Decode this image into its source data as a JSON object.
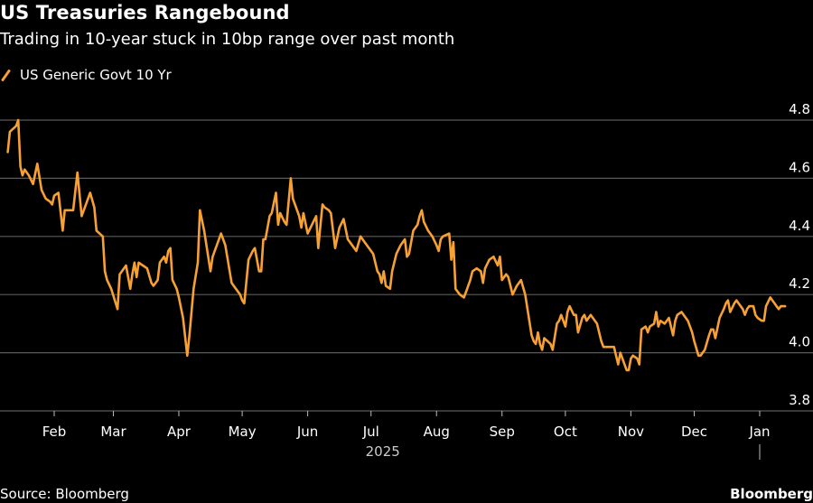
{
  "chart_data": {
    "type": "line",
    "title": "US Treasuries Rangebound",
    "subtitle": "Trading in 10-year stuck in 10bp range over past month",
    "xlabel": "",
    "ylabel": "",
    "ylim": [
      3.8,
      4.8
    ],
    "yticks": [
      3.8,
      4.0,
      4.2,
      4.4,
      4.6,
      4.8
    ],
    "ytick_labels": [
      "3.8",
      "4.0",
      "4.2",
      "4.4",
      "4.6",
      "4.8"
    ],
    "xlim": [
      "2025-01-01",
      "2026-01-15"
    ],
    "xticks": [
      {
        "date": "2025-02-01",
        "label": "Feb"
      },
      {
        "date": "2025-03-01",
        "label": "Mar"
      },
      {
        "date": "2025-04-01",
        "label": "Apr"
      },
      {
        "date": "2025-05-01",
        "label": "May"
      },
      {
        "date": "2025-06-01",
        "label": "Jun"
      },
      {
        "date": "2025-07-01",
        "label": "Jul"
      },
      {
        "date": "2025-08-01",
        "label": "Aug"
      },
      {
        "date": "2025-09-01",
        "label": "Sep"
      },
      {
        "date": "2025-10-01",
        "label": "Oct"
      },
      {
        "date": "2025-11-01",
        "label": "Nov"
      },
      {
        "date": "2025-12-01",
        "label": "Dec"
      },
      {
        "date": "2026-01-01",
        "label": "Jan"
      }
    ],
    "year_label": {
      "text": "2025",
      "under": "2025-07-01"
    },
    "year_separator": "2026-01-01",
    "grid": true,
    "y_axis_side": "right",
    "legend": {
      "position": "top-left",
      "entries": [
        "US Generic Govt 10 Yr"
      ]
    },
    "series": [
      {
        "name": "US Generic Govt 10 Yr",
        "color": "#f7a033",
        "points": [
          [
            "2025-01-10",
            4.69
          ],
          [
            "2025-01-11",
            4.76
          ],
          [
            "2025-01-14",
            4.78
          ],
          [
            "2025-01-15",
            4.8
          ],
          [
            "2025-01-16",
            4.64
          ],
          [
            "2025-01-17",
            4.61
          ],
          [
            "2025-01-18",
            4.63
          ],
          [
            "2025-01-20",
            4.61
          ],
          [
            "2025-01-22",
            4.58
          ],
          [
            "2025-01-24",
            4.65
          ],
          [
            "2025-01-26",
            4.56
          ],
          [
            "2025-01-28",
            4.53
          ],
          [
            "2025-01-30",
            4.52
          ],
          [
            "2025-01-31",
            4.51
          ],
          [
            "2025-02-01",
            4.54
          ],
          [
            "2025-02-03",
            4.55
          ],
          [
            "2025-02-05",
            4.42
          ],
          [
            "2025-02-06",
            4.49
          ],
          [
            "2025-02-10",
            4.49
          ],
          [
            "2025-02-12",
            4.62
          ],
          [
            "2025-02-14",
            4.47
          ],
          [
            "2025-02-18",
            4.55
          ],
          [
            "2025-02-20",
            4.5
          ],
          [
            "2025-02-21",
            4.42
          ],
          [
            "2025-02-24",
            4.4
          ],
          [
            "2025-02-25",
            4.28
          ],
          [
            "2025-02-26",
            4.25
          ],
          [
            "2025-02-28",
            4.22
          ],
          [
            "2025-03-03",
            4.15
          ],
          [
            "2025-03-04",
            4.27
          ],
          [
            "2025-03-06",
            4.29
          ],
          [
            "2025-03-07",
            4.3
          ],
          [
            "2025-03-09",
            4.22
          ],
          [
            "2025-03-10",
            4.27
          ],
          [
            "2025-03-11",
            4.31
          ],
          [
            "2025-03-12",
            4.26
          ],
          [
            "2025-03-13",
            4.31
          ],
          [
            "2025-03-15",
            4.3
          ],
          [
            "2025-03-17",
            4.29
          ],
          [
            "2025-03-19",
            4.24
          ],
          [
            "2025-03-20",
            4.23
          ],
          [
            "2025-03-22",
            4.25
          ],
          [
            "2025-03-23",
            4.31
          ],
          [
            "2025-03-25",
            4.33
          ],
          [
            "2025-03-26",
            4.31
          ],
          [
            "2025-03-27",
            4.35
          ],
          [
            "2025-03-28",
            4.36
          ],
          [
            "2025-03-29",
            4.25
          ],
          [
            "2025-03-31",
            4.22
          ],
          [
            "2025-04-01",
            4.19
          ],
          [
            "2025-04-03",
            4.12
          ],
          [
            "2025-04-05",
            3.99
          ],
          [
            "2025-04-06",
            4.06
          ],
          [
            "2025-04-08",
            4.22
          ],
          [
            "2025-04-10",
            4.31
          ],
          [
            "2025-04-11",
            4.49
          ],
          [
            "2025-04-13",
            4.42
          ],
          [
            "2025-04-16",
            4.28
          ],
          [
            "2025-04-17",
            4.33
          ],
          [
            "2025-04-21",
            4.41
          ],
          [
            "2025-04-23",
            4.37
          ],
          [
            "2025-04-26",
            4.24
          ],
          [
            "2025-04-28",
            4.22
          ],
          [
            "2025-04-30",
            4.2
          ],
          [
            "2025-05-01",
            4.18
          ],
          [
            "2025-05-02",
            4.17
          ],
          [
            "2025-05-04",
            4.32
          ],
          [
            "2025-05-06",
            4.35
          ],
          [
            "2025-05-07",
            4.36
          ],
          [
            "2025-05-09",
            4.28
          ],
          [
            "2025-05-10",
            4.28
          ],
          [
            "2025-05-11",
            4.39
          ],
          [
            "2025-05-12",
            4.39
          ],
          [
            "2025-05-14",
            4.47
          ],
          [
            "2025-05-15",
            4.48
          ],
          [
            "2025-05-17",
            4.55
          ],
          [
            "2025-05-18",
            4.44
          ],
          [
            "2025-05-19",
            4.48
          ],
          [
            "2025-05-21",
            4.45
          ],
          [
            "2025-05-22",
            4.44
          ],
          [
            "2025-05-24",
            4.6
          ],
          [
            "2025-05-25",
            4.53
          ],
          [
            "2025-05-28",
            4.47
          ],
          [
            "2025-05-29",
            4.43
          ],
          [
            "2025-05-30",
            4.48
          ],
          [
            "2025-06-01",
            4.41
          ],
          [
            "2025-06-03",
            4.44
          ],
          [
            "2025-06-05",
            4.47
          ],
          [
            "2025-06-06",
            4.36
          ],
          [
            "2025-06-08",
            4.51
          ],
          [
            "2025-06-09",
            4.5
          ],
          [
            "2025-06-11",
            4.49
          ],
          [
            "2025-06-12",
            4.48
          ],
          [
            "2025-06-14",
            4.36
          ],
          [
            "2025-06-16",
            4.43
          ],
          [
            "2025-06-18",
            4.46
          ],
          [
            "2025-06-20",
            4.39
          ],
          [
            "2025-06-21",
            4.38
          ],
          [
            "2025-06-24",
            4.35
          ],
          [
            "2025-06-26",
            4.4
          ],
          [
            "2025-06-28",
            4.38
          ],
          [
            "2025-07-02",
            4.34
          ],
          [
            "2025-07-04",
            4.28
          ],
          [
            "2025-07-05",
            4.27
          ],
          [
            "2025-07-06",
            4.24
          ],
          [
            "2025-07-07",
            4.28
          ],
          [
            "2025-07-08",
            4.23
          ],
          [
            "2025-07-10",
            4.22
          ],
          [
            "2025-07-11",
            4.28
          ],
          [
            "2025-07-13",
            4.34
          ],
          [
            "2025-07-15",
            4.37
          ],
          [
            "2025-07-17",
            4.39
          ],
          [
            "2025-07-18",
            4.33
          ],
          [
            "2025-07-19",
            4.34
          ],
          [
            "2025-07-21",
            4.42
          ],
          [
            "2025-07-23",
            4.44
          ],
          [
            "2025-07-24",
            4.47
          ],
          [
            "2025-07-25",
            4.49
          ],
          [
            "2025-07-26",
            4.45
          ],
          [
            "2025-07-28",
            4.42
          ],
          [
            "2025-07-30",
            4.4
          ],
          [
            "2025-08-01",
            4.37
          ],
          [
            "2025-08-02",
            4.35
          ],
          [
            "2025-08-03",
            4.39
          ],
          [
            "2025-08-04",
            4.4
          ],
          [
            "2025-08-07",
            4.41
          ],
          [
            "2025-08-08",
            4.32
          ],
          [
            "2025-08-09",
            4.38
          ],
          [
            "2025-08-10",
            4.22
          ],
          [
            "2025-08-12",
            4.2
          ],
          [
            "2025-08-14",
            4.19
          ],
          [
            "2025-08-15",
            4.21
          ],
          [
            "2025-08-17",
            4.25
          ],
          [
            "2025-08-18",
            4.28
          ],
          [
            "2025-08-20",
            4.29
          ],
          [
            "2025-08-22",
            4.28
          ],
          [
            "2025-08-23",
            4.24
          ],
          [
            "2025-08-24",
            4.29
          ],
          [
            "2025-08-26",
            4.32
          ],
          [
            "2025-08-28",
            4.33
          ],
          [
            "2025-08-30",
            4.3
          ],
          [
            "2025-08-31",
            4.33
          ],
          [
            "2025-09-01",
            4.25
          ],
          [
            "2025-09-03",
            4.27
          ],
          [
            "2025-09-04",
            4.26
          ],
          [
            "2025-09-05",
            4.23
          ],
          [
            "2025-09-06",
            4.2
          ],
          [
            "2025-09-08",
            4.23
          ],
          [
            "2025-09-10",
            4.25
          ],
          [
            "2025-09-12",
            4.2
          ],
          [
            "2025-09-15",
            4.06
          ],
          [
            "2025-09-16",
            4.04
          ],
          [
            "2025-09-17",
            4.03
          ],
          [
            "2025-09-18",
            4.07
          ],
          [
            "2025-09-19",
            4.03
          ],
          [
            "2025-09-20",
            4.01
          ],
          [
            "2025-09-21",
            4.05
          ],
          [
            "2025-09-24",
            4.03
          ],
          [
            "2025-09-25",
            4.01
          ],
          [
            "2025-09-27",
            4.1
          ],
          [
            "2025-09-28",
            4.11
          ],
          [
            "2025-09-29",
            4.13
          ],
          [
            "2025-10-01",
            4.09
          ],
          [
            "2025-10-02",
            4.14
          ],
          [
            "2025-10-03",
            4.16
          ],
          [
            "2025-10-05",
            4.13
          ],
          [
            "2025-10-06",
            4.13
          ],
          [
            "2025-10-07",
            4.07
          ],
          [
            "2025-10-09",
            4.12
          ],
          [
            "2025-10-10",
            4.13
          ],
          [
            "2025-10-11",
            4.11
          ],
          [
            "2025-10-13",
            4.13
          ],
          [
            "2025-10-15",
            4.11
          ],
          [
            "2025-10-16",
            4.1
          ],
          [
            "2025-10-18",
            4.04
          ],
          [
            "2025-10-19",
            4.02
          ],
          [
            "2025-10-22",
            4.02
          ],
          [
            "2025-10-24",
            4.02
          ],
          [
            "2025-10-26",
            3.96
          ],
          [
            "2025-10-27",
            4.0
          ],
          [
            "2025-10-28",
            3.98
          ],
          [
            "2025-10-30",
            3.94
          ],
          [
            "2025-10-31",
            3.94
          ],
          [
            "2025-11-01",
            3.98
          ],
          [
            "2025-11-02",
            3.99
          ],
          [
            "2025-11-04",
            3.98
          ],
          [
            "2025-11-05",
            3.96
          ],
          [
            "2025-11-06",
            4.08
          ],
          [
            "2025-11-08",
            4.09
          ],
          [
            "2025-11-09",
            4.07
          ],
          [
            "2025-11-10",
            4.09
          ],
          [
            "2025-11-12",
            4.1
          ],
          [
            "2025-11-13",
            4.14
          ],
          [
            "2025-11-14",
            4.09
          ],
          [
            "2025-11-15",
            4.11
          ],
          [
            "2025-11-17",
            4.1
          ],
          [
            "2025-11-19",
            4.12
          ],
          [
            "2025-11-21",
            4.06
          ],
          [
            "2025-11-22",
            4.11
          ],
          [
            "2025-11-23",
            4.13
          ],
          [
            "2025-11-25",
            4.14
          ],
          [
            "2025-11-26",
            4.13
          ],
          [
            "2025-11-28",
            4.11
          ],
          [
            "2025-11-30",
            4.07
          ],
          [
            "2025-12-01",
            4.04
          ],
          [
            "2025-12-03",
            3.99
          ],
          [
            "2025-12-04",
            3.99
          ],
          [
            "2025-12-06",
            4.01
          ],
          [
            "2025-12-08",
            4.06
          ],
          [
            "2025-12-09",
            4.08
          ],
          [
            "2025-12-10",
            4.08
          ],
          [
            "2025-12-11",
            4.05
          ],
          [
            "2025-12-13",
            4.12
          ],
          [
            "2025-12-15",
            4.15
          ],
          [
            "2025-12-16",
            4.17
          ],
          [
            "2025-12-17",
            4.18
          ],
          [
            "2025-12-18",
            4.14
          ],
          [
            "2025-12-20",
            4.17
          ],
          [
            "2025-12-21",
            4.18
          ],
          [
            "2025-12-22",
            4.17
          ],
          [
            "2025-12-24",
            4.15
          ],
          [
            "2025-12-25",
            4.13
          ],
          [
            "2025-12-26",
            4.15
          ],
          [
            "2025-12-27",
            4.16
          ],
          [
            "2025-12-29",
            4.16
          ],
          [
            "2025-12-30",
            4.13
          ],
          [
            "2025-12-31",
            4.12
          ],
          [
            "2026-01-02",
            4.11
          ],
          [
            "2026-01-03",
            4.11
          ],
          [
            "2026-01-04",
            4.16
          ],
          [
            "2026-01-06",
            4.19
          ],
          [
            "2026-01-08",
            4.17
          ],
          [
            "2026-01-09",
            4.16
          ],
          [
            "2026-01-10",
            4.15
          ],
          [
            "2026-01-11",
            4.16
          ],
          [
            "2026-01-12",
            4.16
          ],
          [
            "2026-01-13",
            4.16
          ]
        ]
      }
    ]
  },
  "footer": {
    "source": "Source: Bloomberg",
    "brand": "Bloomberg"
  },
  "colors": {
    "background": "#000000",
    "line": "#f7a033",
    "grid": "#5a5a5a",
    "text": "#ffffff"
  }
}
